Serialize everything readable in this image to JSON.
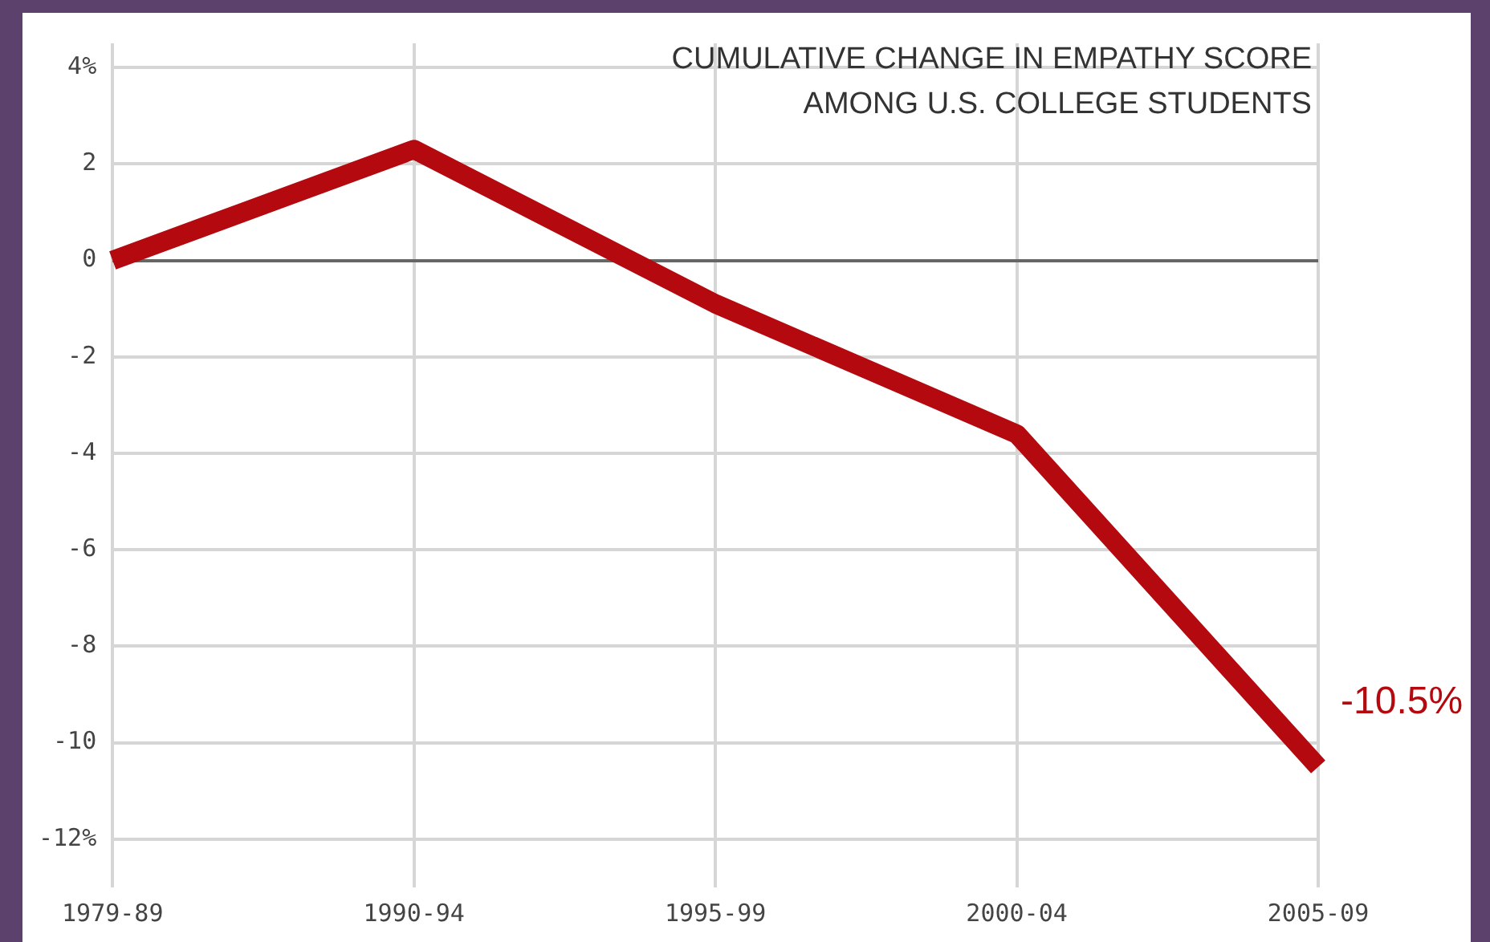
{
  "chart_data": {
    "type": "line",
    "title": "CUMULATIVE CHANGE IN EMPATHY SCORE AMONG U.S. COLLEGE STUDENTS",
    "categories": [
      "1979-89",
      "1990-94",
      "1995-99",
      "2000-04",
      "2005-09"
    ],
    "series": [
      {
        "color": "#b3090f",
        "values": [
          0,
          2.3,
          -0.9,
          -3.6,
          -10.5
        ],
        "value_labels": [
          null,
          null,
          null,
          null,
          "-10.5%"
        ]
      }
    ],
    "ylim": [
      -13,
      4.5
    ],
    "yticks": [
      {
        "value": 4,
        "label": "4%"
      },
      2,
      0,
      -2,
      -4,
      -6,
      -8,
      -10,
      {
        "value": -12,
        "label": "-12%"
      }
    ],
    "grid": true,
    "legend": false,
    "marker": "none",
    "line_style": "solid"
  }
}
